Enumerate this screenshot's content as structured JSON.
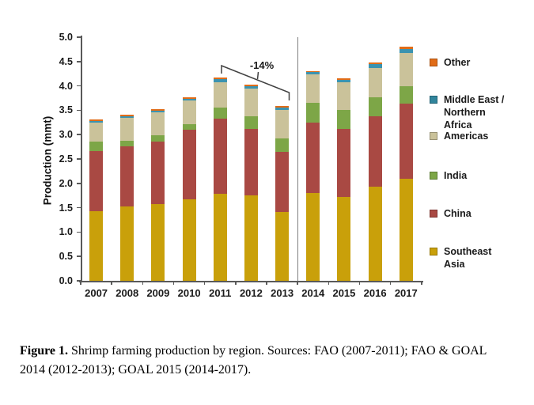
{
  "chart": {
    "y_axis_title": "Production (mmt)",
    "annotation_label": "-14%"
  },
  "legend": {
    "items": [
      {
        "name": "other",
        "lines": [
          "Other"
        ],
        "color": "#E16C17",
        "y": 71
      },
      {
        "name": "middle-east-northern-africa",
        "lines": [
          "Middle East /",
          "Northern",
          "Africa"
        ],
        "color": "#31859C",
        "y": 118
      },
      {
        "name": "americas",
        "lines": [
          "Americas"
        ],
        "color": "#CAC29A",
        "y": 164
      },
      {
        "name": "india",
        "lines": [
          "India"
        ],
        "color": "#7DA647",
        "y": 214
      },
      {
        "name": "china",
        "lines": [
          "China"
        ],
        "color": "#A94943",
        "y": 262
      },
      {
        "name": "southeast-asia",
        "lines": [
          "Southeast",
          "Asia"
        ],
        "color": "#C9A00A",
        "y": 310
      }
    ]
  },
  "caption": {
    "prefix": "Figure 1.",
    "line1_rest": " Shrimp farming production by region. Sources: FAO (2007-2011); FAO & GOAL",
    "line2": "2014 (2012-2013); GOAL 2015 (2014-2017)."
  },
  "chart_data": {
    "type": "bar",
    "stacked": true,
    "title": "",
    "xlabel": "",
    "ylabel": "Production (mmt)",
    "ylim": [
      0,
      5
    ],
    "ytick_step": 0.5,
    "grid": false,
    "legend_position": "right",
    "categories": [
      "2007",
      "2008",
      "2009",
      "2010",
      "2011",
      "2012",
      "2013",
      "2014",
      "2015",
      "2016",
      "2017"
    ],
    "series": [
      {
        "name": "Southeast Asia",
        "color": "#C9A00A",
        "values": [
          1.43,
          1.52,
          1.58,
          1.67,
          1.79,
          1.75,
          1.41,
          1.81,
          1.72,
          1.93,
          2.09
        ]
      },
      {
        "name": "China",
        "color": "#A94943",
        "values": [
          1.24,
          1.24,
          1.27,
          1.43,
          1.54,
          1.37,
          1.24,
          1.44,
          1.39,
          1.44,
          1.54
        ]
      },
      {
        "name": "India",
        "color": "#7DA647",
        "values": [
          0.18,
          0.12,
          0.13,
          0.12,
          0.23,
          0.25,
          0.28,
          0.4,
          0.39,
          0.4,
          0.37
        ]
      },
      {
        "name": "Americas",
        "color": "#CAC29A",
        "values": [
          0.39,
          0.46,
          0.47,
          0.48,
          0.52,
          0.57,
          0.57,
          0.58,
          0.58,
          0.6,
          0.68
        ]
      },
      {
        "name": "Middle East / Northern Africa",
        "color": "#3B93B0",
        "values": [
          0.04,
          0.04,
          0.04,
          0.04,
          0.06,
          0.05,
          0.05,
          0.05,
          0.05,
          0.07,
          0.07
        ]
      },
      {
        "name": "Other",
        "color": "#E16C17",
        "values": [
          0.03,
          0.03,
          0.03,
          0.03,
          0.03,
          0.04,
          0.04,
          0.02,
          0.03,
          0.04,
          0.06
        ]
      }
    ],
    "separator_after_category": "2013",
    "annotations": [
      {
        "text": "-14%",
        "from_category": "2011",
        "to_category": "2013",
        "meaning": "decline from 2011 total to 2013 total"
      }
    ]
  }
}
